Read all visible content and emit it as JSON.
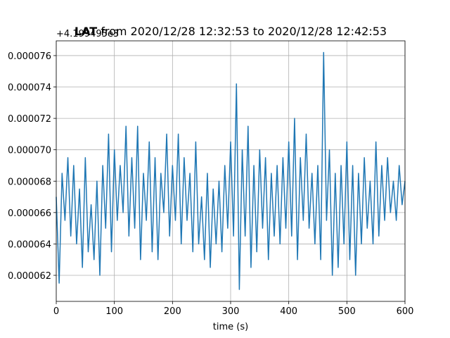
{
  "chart_data": {
    "type": "line",
    "title_bold": "LAT",
    "title": "from 2020/12/28 12:32:53 to 2020/12/28 12:42:53",
    "offset_text": "+4.199495e3",
    "x_label": "time (s)",
    "xlim": [
      0,
      600
    ],
    "xticks": [
      0,
      100,
      200,
      300,
      400,
      500,
      600
    ],
    "ylim": [
      6.034e-05,
      7.694e-05
    ],
    "yticks": [
      {
        "value": 6.2e-05,
        "label": "0.000062"
      },
      {
        "value": 6.4e-05,
        "label": "0.000064"
      },
      {
        "value": 6.6e-05,
        "label": "0.000066"
      },
      {
        "value": 6.8e-05,
        "label": "0.000068"
      },
      {
        "value": 7e-05,
        "label": "0.000070"
      },
      {
        "value": 7.2e-05,
        "label": "0.000072"
      },
      {
        "value": 7.4e-05,
        "label": "0.000074"
      },
      {
        "value": 7.6e-05,
        "label": "0.000076"
      }
    ],
    "grid": true,
    "x": [
      0,
      5,
      10,
      15,
      20,
      25,
      30,
      35,
      40,
      45,
      50,
      55,
      60,
      65,
      70,
      75,
      80,
      85,
      90,
      95,
      100,
      105,
      110,
      115,
      120,
      125,
      130,
      135,
      140,
      145,
      150,
      155,
      160,
      165,
      170,
      175,
      180,
      185,
      190,
      195,
      200,
      205,
      210,
      215,
      220,
      225,
      230,
      235,
      240,
      245,
      250,
      255,
      260,
      265,
      270,
      275,
      280,
      285,
      290,
      295,
      300,
      305,
      310,
      315,
      320,
      325,
      330,
      335,
      340,
      345,
      350,
      355,
      360,
      365,
      370,
      375,
      380,
      385,
      390,
      395,
      400,
      405,
      410,
      415,
      420,
      425,
      430,
      435,
      440,
      445,
      450,
      455,
      460,
      465,
      470,
      475,
      480,
      485,
      490,
      495,
      500,
      505,
      510,
      515,
      520,
      525,
      530,
      535,
      540,
      545,
      550,
      555,
      560,
      565,
      570,
      575,
      580,
      585,
      590,
      595,
      600
    ],
    "series": [
      {
        "color": "#1f77b4",
        "values": [
          6.7e-05,
          6.15e-05,
          6.85e-05,
          6.55e-05,
          6.95e-05,
          6.45e-05,
          6.9e-05,
          6.4e-05,
          6.75e-05,
          6.25e-05,
          6.95e-05,
          6.35e-05,
          6.65e-05,
          6.3e-05,
          6.8e-05,
          6.2e-05,
          6.9e-05,
          6.5e-05,
          7.1e-05,
          6.35e-05,
          7e-05,
          6.55e-05,
          6.9e-05,
          6.6e-05,
          7.15e-05,
          6.45e-05,
          6.95e-05,
          6.5e-05,
          7.15e-05,
          6.3e-05,
          6.85e-05,
          6.55e-05,
          7.05e-05,
          6.35e-05,
          6.95e-05,
          6.3e-05,
          6.85e-05,
          6.6e-05,
          7.1e-05,
          6.45e-05,
          6.9e-05,
          6.55e-05,
          7.1e-05,
          6.4e-05,
          6.95e-05,
          6.55e-05,
          6.85e-05,
          6.35e-05,
          7.05e-05,
          6.4e-05,
          6.7e-05,
          6.3e-05,
          6.85e-05,
          6.25e-05,
          6.75e-05,
          6.4e-05,
          6.8e-05,
          6.35e-05,
          6.9e-05,
          6.5e-05,
          7.05e-05,
          6.45e-05,
          7.42e-05,
          6.11e-05,
          7e-05,
          6.45e-05,
          7.15e-05,
          6.25e-05,
          6.9e-05,
          6.35e-05,
          7e-05,
          6.5e-05,
          6.95e-05,
          6.3e-05,
          6.85e-05,
          6.45e-05,
          6.9e-05,
          6.4e-05,
          6.95e-05,
          6.5e-05,
          7.05e-05,
          6.45e-05,
          7.2e-05,
          6.3e-05,
          6.95e-05,
          6.55e-05,
          7.1e-05,
          6.5e-05,
          6.85e-05,
          6.4e-05,
          6.9e-05,
          6.3e-05,
          7.62e-05,
          6.55e-05,
          7e-05,
          6.2e-05,
          6.85e-05,
          6.25e-05,
          6.9e-05,
          6.4e-05,
          7.05e-05,
          6.3e-05,
          6.9e-05,
          6.2e-05,
          6.85e-05,
          6.4e-05,
          6.95e-05,
          6.5e-05,
          6.8e-05,
          6.4e-05,
          7.05e-05,
          6.45e-05,
          6.9e-05,
          6.55e-05,
          6.95e-05,
          6.6e-05,
          6.8e-05,
          6.55e-05,
          6.9e-05,
          6.65e-05,
          6.8e-05
        ]
      }
    ]
  }
}
